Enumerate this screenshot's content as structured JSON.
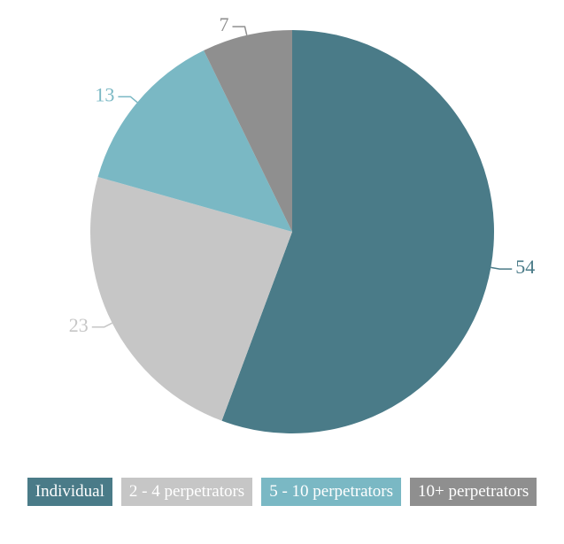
{
  "chart_data": {
    "type": "pie",
    "categories": [
      "Individual",
      "2 - 4 perpetrators",
      "5 - 10 perpetrators",
      "10+ perpetrators"
    ],
    "values": [
      54,
      23,
      13,
      7
    ],
    "colors": [
      "#4a7b88",
      "#c6c6c6",
      "#7ab8c4",
      "#8f8f8f"
    ],
    "start_angle": 0,
    "direction": "clockwise",
    "legend": "bottom"
  }
}
